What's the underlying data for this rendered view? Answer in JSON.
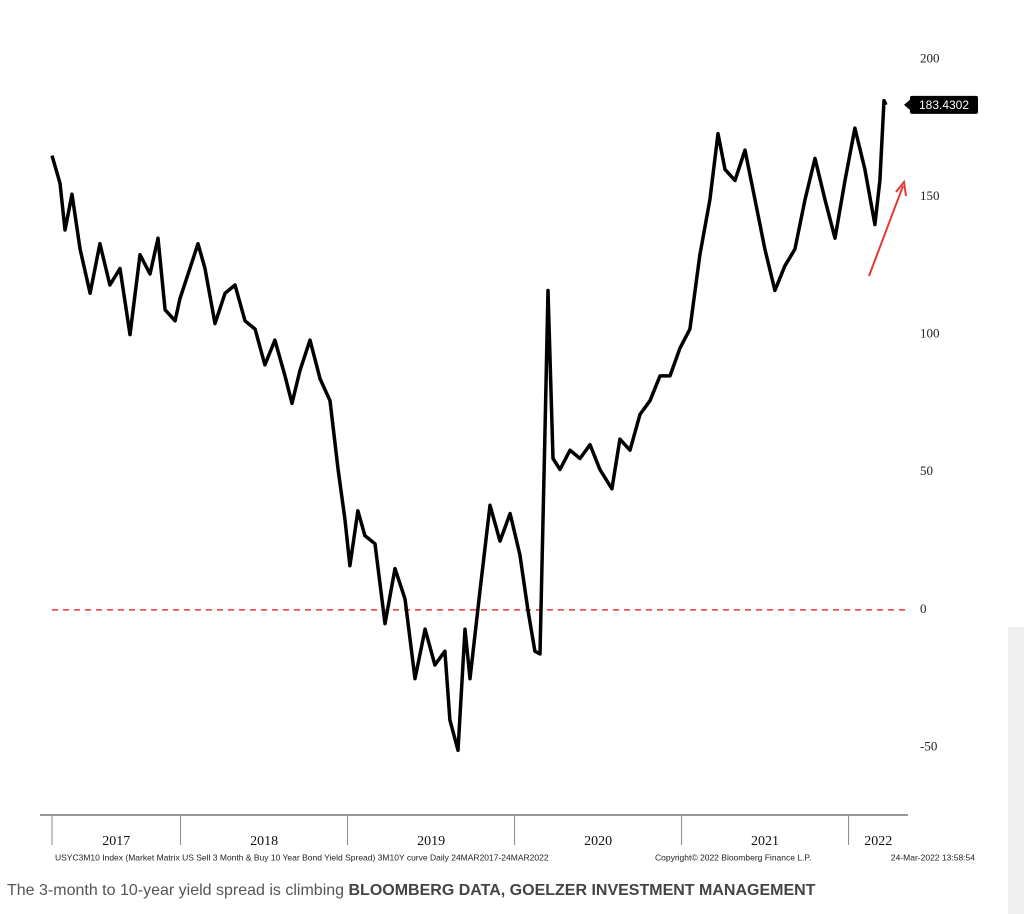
{
  "chart_data": {
    "type": "line",
    "series": [
      {
        "name": "USYC3M10 Index",
        "color": "#000000",
        "x": [
          2017.23,
          2017.278,
          2017.308,
          2017.35,
          2017.398,
          2017.458,
          2017.517,
          2017.577,
          2017.637,
          2017.697,
          2017.757,
          2017.817,
          2017.865,
          2017.907,
          2017.967,
          2017.996,
          2018.056,
          2018.104,
          2018.146,
          2018.206,
          2018.266,
          2018.326,
          2018.386,
          2018.446,
          2018.505,
          2018.565,
          2018.625,
          2018.667,
          2018.715,
          2018.775,
          2018.835,
          2018.895,
          2018.943,
          2018.984,
          2019.014,
          2019.062,
          2019.104,
          2019.164,
          2019.224,
          2019.284,
          2019.344,
          2019.404,
          2019.464,
          2019.523,
          2019.583,
          2019.613,
          2019.661,
          2019.703,
          2019.733,
          2019.793,
          2019.853,
          2019.913,
          2019.973,
          2020.032,
          2020.08,
          2020.122,
          2020.152,
          2020.182,
          2020.2,
          2020.23,
          2020.272,
          2020.332,
          2020.392,
          2020.452,
          2020.511,
          2020.583,
          2020.631,
          2020.691,
          2020.751,
          2020.811,
          2020.871,
          2020.931,
          2020.99,
          2021.05,
          2021.11,
          2021.17,
          2021.218,
          2021.26,
          2021.32,
          2021.38,
          2021.44,
          2021.499,
          2021.559,
          2021.619,
          2021.679,
          2021.739,
          2021.799,
          2021.859,
          2021.919,
          2021.979,
          2022.038,
          2022.098,
          2022.158,
          2022.188,
          2022.212,
          2022.224
        ],
        "values": [
          165,
          155,
          138,
          151,
          131,
          115,
          133,
          118,
          124,
          100,
          129,
          122,
          135,
          109,
          105,
          113,
          124,
          133,
          124,
          104,
          115,
          118,
          105,
          102,
          89,
          98,
          85,
          75,
          87,
          98,
          84,
          76,
          51,
          33,
          16,
          36,
          27,
          24,
          -5,
          15,
          4,
          -25,
          -7,
          -20,
          -15,
          -40,
          -51,
          -7,
          -25,
          7,
          38,
          25,
          35,
          20,
          0,
          -15,
          -16,
          65,
          116,
          55,
          51,
          58,
          55,
          60,
          51,
          44,
          62,
          58,
          71,
          76,
          85,
          85,
          95,
          102,
          129,
          149,
          173,
          160,
          156,
          167,
          149,
          131,
          116,
          125,
          131,
          149,
          164,
          149,
          135,
          156,
          175,
          160,
          140,
          156,
          185,
          183.4302
        ]
      }
    ],
    "xlim": [
      2017.23,
      2022.356
    ],
    "xticks": [
      2018,
      2019,
      2020,
      2021,
      2022
    ],
    "year_labels": [
      "2017",
      "2018",
      "2019",
      "2020",
      "2021",
      "2022"
    ],
    "ylim": [
      -74.5,
      207
    ],
    "yticks": [
      -50,
      0,
      50,
      100,
      150,
      200
    ],
    "reference_lines": [
      {
        "value": 0,
        "color": "#e53935",
        "style": "dashed"
      }
    ],
    "grid": false,
    "source_notes": [
      "USYC3M10 Index (Market Matrix US Sell 3 Month & Buy 10 Year Bond Yield Spread) 3M10Y curve Daily 24MAR2017-24MAR2022",
      "Copyright© 2022 Bloomberg Finance L.P.",
      "24-Mar-2022 13:58:54"
    ]
  },
  "caption": {
    "text": "The 3-month to 10-year yield spread is climbing",
    "credit": "BLOOMBERG DATA, GOELZER INVESTMENT MANAGEMENT"
  }
}
